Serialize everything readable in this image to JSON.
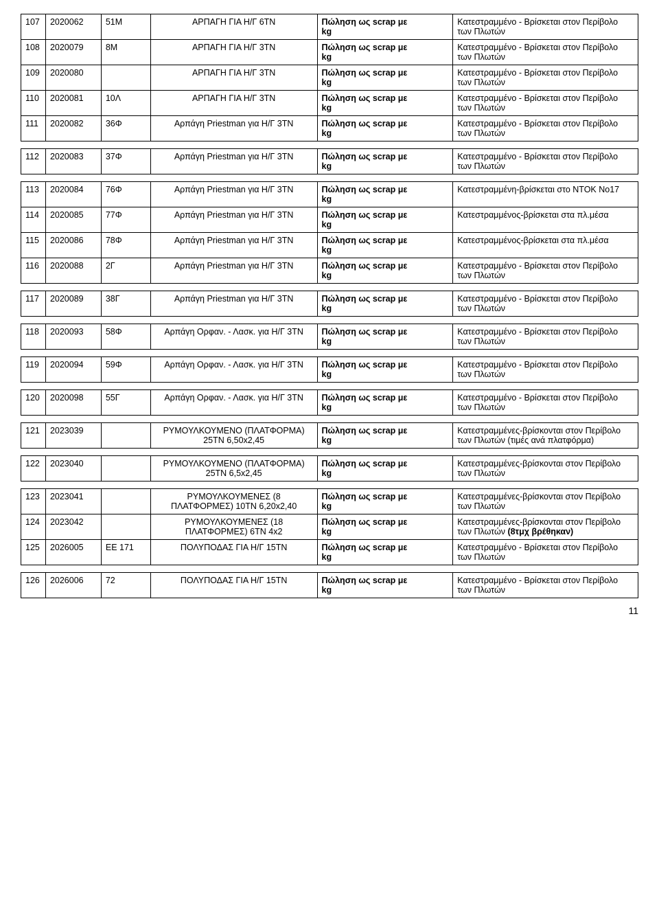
{
  "pageNumber": "11",
  "blocks": [
    {
      "rows": [
        {
          "n": "107",
          "code": "2020062",
          "ref": "51M",
          "desc": "ΑΡΠΑΓΗ ΓΙΑ Η/Γ 6ΤΝ",
          "sale": "Πώληση ως scrap με kg",
          "cond": "Κατεστραμμένο - Βρίσκεται στον Περίβολο των Πλωτών"
        },
        {
          "n": "108",
          "code": "2020079",
          "ref": "8M",
          "desc": "ΑΡΠΑΓΗ ΓΙΑ Η/Γ 3ΤΝ",
          "sale": "Πώληση ως scrap με kg",
          "cond": "Κατεστραμμένο - Βρίσκεται στον Περίβολο των Πλωτών"
        },
        {
          "n": "109",
          "code": "2020080",
          "ref": "",
          "desc": "ΑΡΠΑΓΗ ΓΙΑ Η/Γ 3ΤΝ",
          "sale": "Πώληση ως scrap με kg",
          "cond": "Κατεστραμμένο - Βρίσκεται στον Περίβολο των Πλωτών"
        },
        {
          "n": "110",
          "code": "2020081",
          "ref": "10Λ",
          "desc": "ΑΡΠΑΓΗ ΓΙΑ Η/Γ 3ΤΝ",
          "sale": "Πώληση ως scrap με kg",
          "cond": "Κατεστραμμένο - Βρίσκεται στον Περίβολο των Πλωτών"
        },
        {
          "n": "111",
          "code": "2020082",
          "ref": "36Φ",
          "desc": "Αρπάγη Priestman για Η/Γ 3ΤΝ",
          "sale": "Πώληση ως scrap με kg",
          "cond": "Κατεστραμμένο - Βρίσκεται στον Περίβολο των Πλωτών"
        }
      ]
    },
    {
      "rows": [
        {
          "n": "112",
          "code": "2020083",
          "ref": "37Φ",
          "desc": "Αρπάγη Priestman για Η/Γ 3ΤΝ",
          "sale": "Πώληση ως scrap με kg",
          "cond": "Κατεστραμμένο - Βρίσκεται στον Περίβολο των Πλωτών"
        }
      ]
    },
    {
      "rows": [
        {
          "n": "113",
          "code": "2020084",
          "ref": "76Φ",
          "desc": "Αρπάγη Priestman για Η/Γ 3ΤΝ",
          "sale": "Πώληση ως scrap με kg",
          "cond": "Κατεστραμμένη-βρίσκεται στο ΝΤΟΚ Νο17"
        },
        {
          "n": "114",
          "code": "2020085",
          "ref": "77Φ",
          "desc": "Αρπάγη Priestman για Η/Γ 3ΤΝ",
          "sale": "Πώληση ως scrap με kg",
          "cond": "Κατεστραμμένος-βρίσκεται στα πλ.μέσα"
        },
        {
          "n": "115",
          "code": "2020086",
          "ref": "78Φ",
          "desc": "Αρπάγη Priestman για Η/Γ 3ΤΝ",
          "sale": "Πώληση ως scrap με kg",
          "cond": "Κατεστραμμένος-βρίσκεται στα πλ.μέσα"
        },
        {
          "n": "116",
          "code": "2020088",
          "ref": "2Γ",
          "desc": "Αρπάγη Priestman για Η/Γ 3ΤΝ",
          "sale": "Πώληση ως scrap με kg",
          "cond": "Κατεστραμμένο - Βρίσκεται στον Περίβολο των Πλωτών"
        }
      ]
    },
    {
      "rows": [
        {
          "n": "117",
          "code": "2020089",
          "ref": "38Γ",
          "desc": "Αρπάγη Priestman για Η/Γ 3ΤΝ",
          "sale": "Πώληση ως scrap με kg",
          "cond": "Κατεστραμμένο - Βρίσκεται στον Περίβολο των Πλωτών"
        }
      ]
    },
    {
      "rows": [
        {
          "n": "118",
          "code": "2020093",
          "ref": "58Φ",
          "desc": "Αρπάγη Ορφαν. - Λασκ. για Η/Γ 3ΤΝ",
          "sale": "Πώληση ως scrap με kg",
          "cond": "Κατεστραμμένο - Βρίσκεται στον Περίβολο των Πλωτών"
        }
      ]
    },
    {
      "rows": [
        {
          "n": "119",
          "code": "2020094",
          "ref": "59Φ",
          "desc": "Αρπάγη Ορφαν. - Λασκ. για Η/Γ 3ΤΝ",
          "sale": "Πώληση ως scrap με kg",
          "cond": "Κατεστραμμένο - Βρίσκεται στον Περίβολο των Πλωτών"
        }
      ]
    },
    {
      "rows": [
        {
          "n": "120",
          "code": "2020098",
          "ref": "55Γ",
          "desc": "Αρπάγη Ορφαν. - Λασκ. για Η/Γ 3ΤΝ",
          "sale": "Πώληση ως scrap με kg",
          "cond": "Κατεστραμμένο - Βρίσκεται στον Περίβολο των Πλωτών"
        }
      ]
    },
    {
      "rows": [
        {
          "n": "121",
          "code": "2023039",
          "ref": "",
          "desc": "ΡΥΜΟΥΛΚΟΥΜΕΝΟ (ΠΛΑΤΦΟΡΜΑ) 25ΤΝ 6,50x2,45",
          "sale": "Πώληση ως scrap με kg",
          "cond": "Κατεστραμμένες-βρίσκονται στον Περίβολο των Πλωτών (τιμές ανά πλατφόρμα)"
        }
      ]
    },
    {
      "rows": [
        {
          "n": "122",
          "code": "2023040",
          "ref": "",
          "desc": "ΡΥΜΟΥΛΚΟΥΜΕΝΟ (ΠΛΑΤΦΟΡΜΑ) 25ΤΝ 6,5x2,45",
          "sale": "Πώληση ως scrap με kg",
          "cond": "Κατεστραμμένες-βρίσκονται στον Περίβολο των Πλωτών"
        }
      ]
    },
    {
      "rows": [
        {
          "n": "123",
          "code": "2023041",
          "ref": "",
          "desc": "ΡΥΜΟΥΛΚΟΥΜΕΝΕΣ (8 ΠΛΑΤΦΟΡΜΕΣ) 10ΤΝ 6,20x2,40",
          "sale": "Πώληση ως scrap με kg",
          "cond": "Κατεστραμμένες-βρίσκονται στον Περίβολο των Πλωτών"
        },
        {
          "n": "124",
          "code": "2023042",
          "ref": "",
          "desc": "ΡΥΜΟΥΛΚΟΥΜΕΝΕΣ (18 ΠΛΑΤΦΟΡΜΕΣ) 6ΤΝ 4x2",
          "sale": "Πώληση ως scrap με kg",
          "cond": "Κατεστραμμένες-βρίσκονται στον Περίβολο των Πλωτών (8τμχ βρέθηκαν)",
          "extraBold": "(8τμχ βρέθηκαν)"
        },
        {
          "n": "125",
          "code": "2026005",
          "ref": "ΕΕ 171",
          "desc": "ΠΟΛΥΠΟΔΑΣ ΓΙΑ Η/Γ 15ΤΝ",
          "sale": "Πώληση ως scrap με kg",
          "cond": "Κατεστραμμένο - Βρίσκεται στον Περίβολο των Πλωτών"
        }
      ]
    },
    {
      "rows": [
        {
          "n": "126",
          "code": "2026006",
          "ref": "72",
          "desc": "ΠΟΛΥΠΟΔΑΣ ΓΙΑ Η/Γ 15ΤΝ",
          "sale": "Πώληση ως scrap με kg",
          "cond": "Κατεστραμμένο - Βρίσκεται στον Περίβολο των Πλωτών"
        }
      ]
    }
  ]
}
